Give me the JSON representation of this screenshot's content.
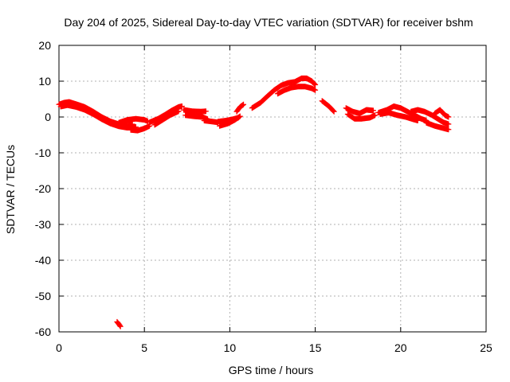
{
  "chart_data": {
    "type": "scatter",
    "title": "Day 204 of 2025, Sidereal Day-to-day VTEC variation (SDTVAR) for receiver bshm",
    "xlabel": "GPS time / hours",
    "ylabel": "SDTVAR / TECUs",
    "xlim": [
      0,
      25
    ],
    "ylim": [
      -60,
      20
    ],
    "xticks": [
      0,
      5,
      10,
      15,
      20,
      25
    ],
    "yticks": [
      -60,
      -50,
      -40,
      -30,
      -20,
      -10,
      0,
      10,
      20
    ],
    "grid": true,
    "marker": "+",
    "series_color": "#ff0000",
    "series": [
      {
        "name": "SDTVAR",
        "tracks": [
          [
            [
              0.0,
              3.5
            ],
            [
              0.3,
              4.0
            ],
            [
              0.6,
              4.2
            ],
            [
              1.0,
              3.6
            ],
            [
              1.5,
              2.8
            ],
            [
              2.0,
              1.5
            ],
            [
              2.5,
              0.0
            ],
            [
              3.0,
              -1.2
            ],
            [
              3.5,
              -2.0
            ],
            [
              4.0,
              -2.3
            ],
            [
              4.3,
              -2.0
            ]
          ],
          [
            [
              0.1,
              2.9
            ],
            [
              0.5,
              3.3
            ],
            [
              1.0,
              2.8
            ],
            [
              1.5,
              2.0
            ],
            [
              2.0,
              0.8
            ],
            [
              2.5,
              -0.6
            ],
            [
              3.0,
              -1.8
            ],
            [
              3.5,
              -2.6
            ],
            [
              4.0,
              -3.0
            ],
            [
              4.5,
              -2.8
            ]
          ],
          [
            [
              3.5,
              -1.6
            ],
            [
              4.0,
              -0.8
            ],
            [
              4.5,
              -0.5
            ],
            [
              5.0,
              -0.8
            ],
            [
              5.2,
              -1.2
            ]
          ],
          [
            [
              4.2,
              -3.6
            ],
            [
              4.6,
              -3.8
            ],
            [
              5.0,
              -3.2
            ],
            [
              5.3,
              -2.5
            ]
          ],
          [
            [
              5.3,
              -1.5
            ],
            [
              5.8,
              -0.5
            ],
            [
              6.2,
              0.6
            ],
            [
              6.6,
              1.8
            ],
            [
              7.0,
              2.8
            ],
            [
              7.2,
              3.0
            ]
          ],
          [
            [
              5.6,
              -2.2
            ],
            [
              6.0,
              -1.0
            ],
            [
              6.5,
              0.5
            ],
            [
              7.0,
              1.6
            ]
          ],
          [
            [
              7.3,
              2.0
            ],
            [
              7.8,
              1.6
            ],
            [
              8.3,
              1.5
            ],
            [
              8.6,
              1.6
            ]
          ],
          [
            [
              7.4,
              0.5
            ],
            [
              7.9,
              0.2
            ],
            [
              8.4,
              0.0
            ],
            [
              8.7,
              -0.6
            ]
          ],
          [
            [
              8.5,
              -1.0
            ],
            [
              9.0,
              -1.3
            ],
            [
              9.3,
              -1.5
            ]
          ],
          [
            [
              9.3,
              -1.3
            ],
            [
              9.8,
              -1.0
            ],
            [
              10.2,
              -0.6
            ],
            [
              10.5,
              -0.2
            ]
          ],
          [
            [
              9.4,
              -2.5
            ],
            [
              9.9,
              -1.8
            ],
            [
              10.3,
              -0.8
            ],
            [
              10.6,
              0.2
            ]
          ],
          [
            [
              10.4,
              1.5
            ],
            [
              10.6,
              2.8
            ],
            [
              10.8,
              3.5
            ]
          ],
          [
            [
              11.3,
              2.5
            ],
            [
              11.8,
              4.0
            ],
            [
              12.2,
              5.8
            ],
            [
              12.6,
              7.5
            ],
            [
              13.0,
              8.8
            ],
            [
              13.4,
              9.5
            ],
            [
              13.8,
              9.8
            ],
            [
              14.2,
              10.8
            ],
            [
              14.5,
              10.8
            ],
            [
              14.8,
              10.0
            ],
            [
              15.0,
              9.0
            ]
          ],
          [
            [
              12.8,
              6.5
            ],
            [
              13.2,
              7.5
            ],
            [
              13.6,
              8.2
            ],
            [
              14.0,
              8.5
            ],
            [
              14.4,
              8.5
            ],
            [
              14.8,
              8.0
            ],
            [
              15.0,
              7.5
            ]
          ],
          [
            [
              15.4,
              4.5
            ],
            [
              15.8,
              3.0
            ],
            [
              16.1,
              1.5
            ]
          ],
          [
            [
              16.8,
              2.5
            ],
            [
              17.2,
              1.5
            ],
            [
              17.6,
              1.0
            ],
            [
              18.0,
              2.0
            ],
            [
              18.4,
              1.8
            ]
          ],
          [
            [
              16.9,
              0.8
            ],
            [
              17.3,
              -0.5
            ],
            [
              17.7,
              -0.5
            ],
            [
              18.2,
              -0.2
            ],
            [
              18.5,
              0.5
            ]
          ],
          [
            [
              18.7,
              1.2
            ],
            [
              19.2,
              2.0
            ],
            [
              19.6,
              3.0
            ],
            [
              20.0,
              2.5
            ],
            [
              20.4,
              1.5
            ],
            [
              20.8,
              0.5
            ],
            [
              21.2,
              -0.5
            ],
            [
              21.5,
              -1.0
            ]
          ],
          [
            [
              18.8,
              0.8
            ],
            [
              19.3,
              1.2
            ],
            [
              19.8,
              0.5
            ],
            [
              20.3,
              0.0
            ],
            [
              20.7,
              -0.6
            ],
            [
              21.0,
              -1.0
            ]
          ],
          [
            [
              20.6,
              1.5
            ],
            [
              21.0,
              2.0
            ],
            [
              21.4,
              1.5
            ],
            [
              21.8,
              0.6
            ],
            [
              22.2,
              -0.6
            ],
            [
              22.5,
              -1.5
            ],
            [
              22.8,
              -2.0
            ]
          ],
          [
            [
              21.5,
              -1.6
            ],
            [
              22.0,
              -2.5
            ],
            [
              22.4,
              -3.0
            ],
            [
              22.8,
              -3.5
            ]
          ],
          [
            [
              22.0,
              1.0
            ],
            [
              22.3,
              2.0
            ],
            [
              22.6,
              0.5
            ],
            [
              22.8,
              0.0
            ]
          ],
          [
            [
              3.4,
              -57.2
            ],
            [
              3.5,
              -57.8
            ],
            [
              3.6,
              -58.5
            ]
          ]
        ]
      }
    ]
  }
}
